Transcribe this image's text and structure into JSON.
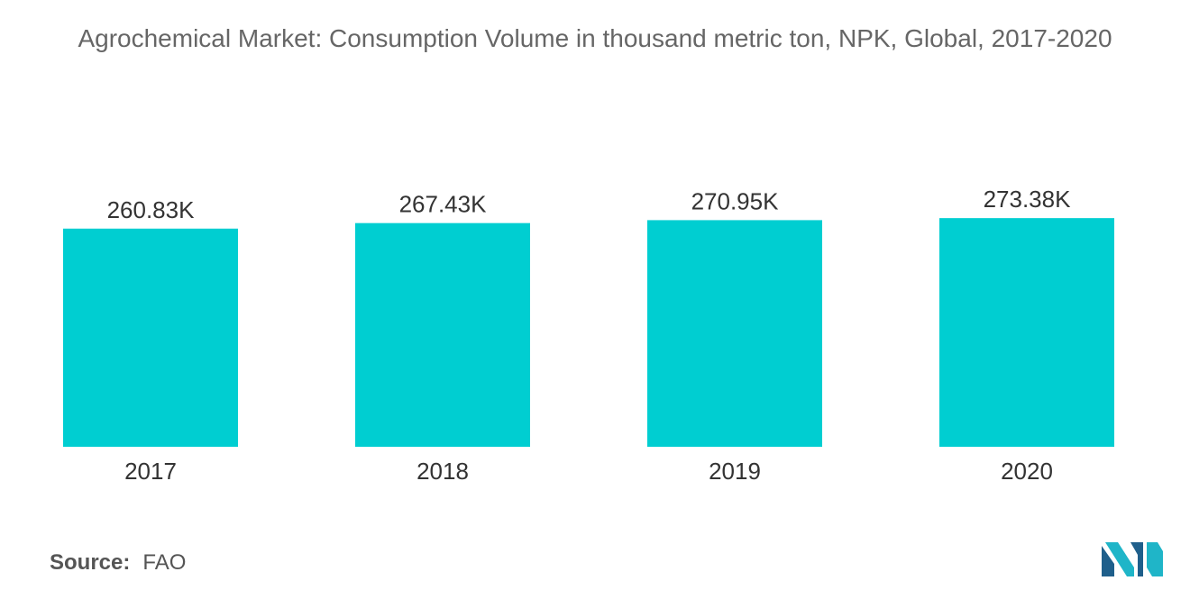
{
  "chart_data": {
    "type": "bar",
    "title": "Agrochemical Market: Consumption Volume in thousand metric ton, NPK, Global, 2017-2020",
    "categories": [
      "2017",
      "2018",
      "2019",
      "2020"
    ],
    "values": [
      260.83,
      267.43,
      270.95,
      273.38
    ],
    "data_labels": [
      "260.83K",
      "267.43K",
      "270.95K",
      "273.38K"
    ],
    "xlabel": "",
    "ylabel": "",
    "ylim": [
      0,
      280
    ],
    "grid": false,
    "legend": "none",
    "bar_color": "#00CED1"
  },
  "source": {
    "label": "Source:",
    "value": "FAO"
  },
  "logo": {
    "icon": "mordor-intelligence-logo-icon",
    "color_dark": "#1f5f8b",
    "color_light": "#1fb5c8"
  }
}
